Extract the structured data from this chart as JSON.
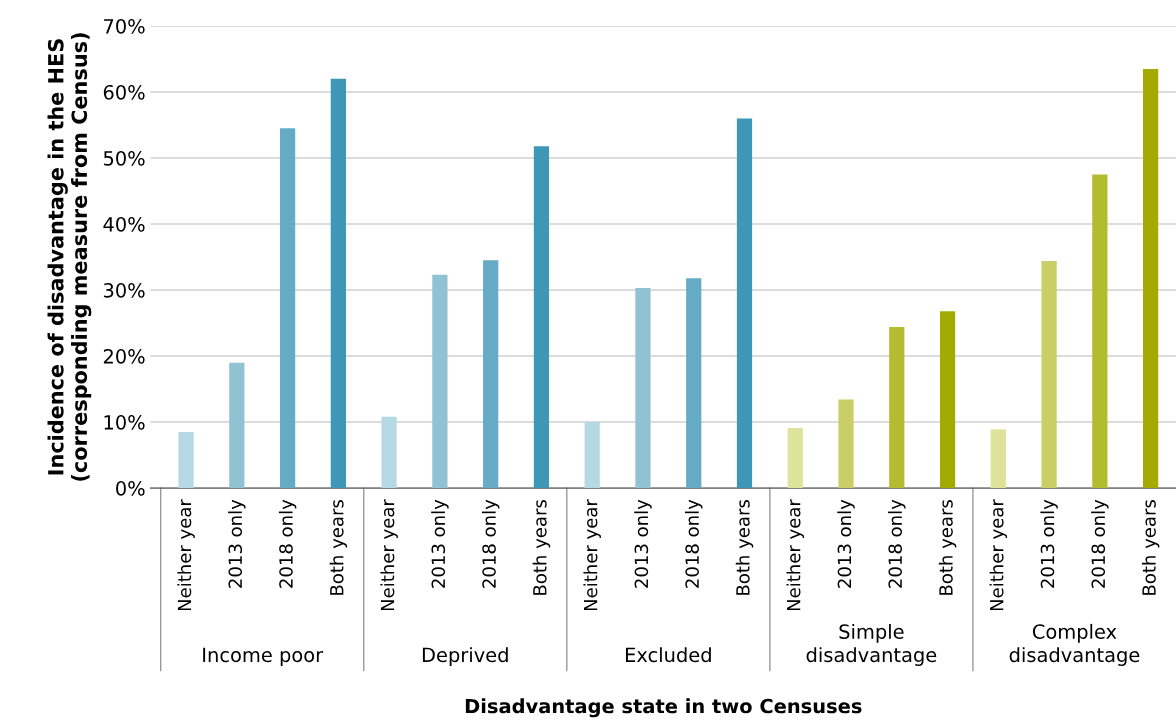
{
  "chart_data": {
    "type": "bar",
    "xlabel": "Disadvantage state in two Censuses",
    "ylabel": "Incidence of disadvantage in the HES\n(corresponding measure from Census)",
    "categories": [
      "Neither year",
      "2013 only",
      "2018 only",
      "Both years",
      "Neither year",
      "2013 only",
      "2018 only",
      "Both years",
      "Neither year",
      "2013 only",
      "2018 only",
      "Both years",
      "Neither year",
      "2013 only",
      "2018 only",
      "Both years",
      "Neither year",
      "2013 only",
      "2018 only",
      "Both years"
    ],
    "values": [
      8.5,
      19,
      54.5,
      62,
      10.8,
      32.3,
      34.5,
      51.8,
      10,
      30.3,
      31.8,
      56,
      9.1,
      13.4,
      24.4,
      26.8,
      8.9,
      34.4,
      47.5,
      63.5
    ],
    "colors": [
      "#b5d9e3",
      "#8fc3d4",
      "#66abc5",
      "#3e97b6",
      "#b5d9e3",
      "#8fc3d4",
      "#66abc5",
      "#3e97b6",
      "#b5d9e3",
      "#8fc3d4",
      "#66abc5",
      "#3e97b6",
      "#dde39a",
      "#c9cf66",
      "#b3bb2e",
      "#a3ab00",
      "#dde39a",
      "#c9cf66",
      "#b3bb2e",
      "#a3ab00"
    ],
    "annotations": [
      "Income poor",
      "Deprived",
      "Excluded",
      "Simple\ndisadvantage",
      "Complex\ndisadvantage"
    ],
    "ylim": [
      0,
      70
    ],
    "yticks": [
      {
        "value": 0,
        "label": "0%"
      },
      {
        "value": 10,
        "label": "10%"
      },
      {
        "value": 20,
        "label": "20%"
      },
      {
        "value": 30,
        "label": "30%"
      },
      {
        "value": 40,
        "label": "40%"
      },
      {
        "value": 50,
        "label": "50%"
      },
      {
        "value": 60,
        "label": "60%"
      },
      {
        "value": 70,
        "label": "70%"
      }
    ],
    "grid": "y",
    "legend": false
  }
}
